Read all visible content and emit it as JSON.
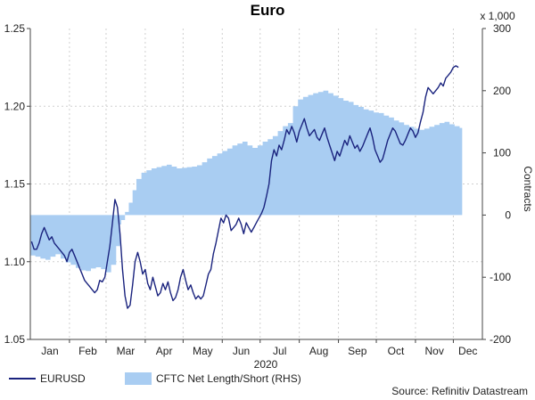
{
  "chart_data": {
    "type": "line",
    "title": "Euro",
    "xlabel": "2020",
    "ylabel_right": "Contracts",
    "right_unit_note": "x 1,000",
    "x_tick_labels": [
      "Jan",
      "Feb",
      "Mar",
      "Apr",
      "May",
      "Jun",
      "Jul",
      "Aug",
      "Sep",
      "Oct",
      "Nov",
      "Dec"
    ],
    "x_range_days": [
      0,
      358
    ],
    "left_axis": {
      "ylim": [
        1.05,
        1.25
      ],
      "ticks": [
        "1.05",
        "1.10",
        "1.15",
        "1.20",
        "1.25"
      ]
    },
    "right_axis": {
      "ylim": [
        -200,
        300
      ],
      "ticks": [
        "-200",
        "-100",
        "0",
        "100",
        "200",
        "300"
      ]
    },
    "grid": true,
    "legend_position": "bottom-left",
    "series": [
      {
        "name": "EURUSD",
        "axis": "left",
        "type": "line",
        "color": "#1a237e",
        "points": [
          [
            1,
            1.113
          ],
          [
            3,
            1.108
          ],
          [
            5,
            1.108
          ],
          [
            7,
            1.112
          ],
          [
            9,
            1.118
          ],
          [
            11,
            1.122
          ],
          [
            13,
            1.118
          ],
          [
            15,
            1.114
          ],
          [
            17,
            1.116
          ],
          [
            19,
            1.112
          ],
          [
            21,
            1.11
          ],
          [
            23,
            1.108
          ],
          [
            25,
            1.106
          ],
          [
            27,
            1.104
          ],
          [
            29,
            1.1
          ],
          [
            31,
            1.106
          ],
          [
            33,
            1.108
          ],
          [
            35,
            1.104
          ],
          [
            37,
            1.1
          ],
          [
            39,
            1.096
          ],
          [
            41,
            1.092
          ],
          [
            43,
            1.088
          ],
          [
            45,
            1.086
          ],
          [
            47,
            1.084
          ],
          [
            49,
            1.082
          ],
          [
            51,
            1.08
          ],
          [
            53,
            1.082
          ],
          [
            55,
            1.088
          ],
          [
            57,
            1.087
          ],
          [
            59,
            1.09
          ],
          [
            61,
            1.1
          ],
          [
            63,
            1.11
          ],
          [
            65,
            1.125
          ],
          [
            67,
            1.14
          ],
          [
            69,
            1.135
          ],
          [
            71,
            1.118
          ],
          [
            73,
            1.095
          ],
          [
            75,
            1.078
          ],
          [
            77,
            1.07
          ],
          [
            79,
            1.072
          ],
          [
            81,
            1.085
          ],
          [
            83,
            1.1
          ],
          [
            85,
            1.106
          ],
          [
            87,
            1.1
          ],
          [
            89,
            1.092
          ],
          [
            91,
            1.095
          ],
          [
            93,
            1.086
          ],
          [
            95,
            1.082
          ],
          [
            97,
            1.09
          ],
          [
            99,
            1.084
          ],
          [
            101,
            1.078
          ],
          [
            103,
            1.08
          ],
          [
            105,
            1.086
          ],
          [
            107,
            1.082
          ],
          [
            109,
            1.087
          ],
          [
            111,
            1.08
          ],
          [
            113,
            1.075
          ],
          [
            115,
            1.077
          ],
          [
            117,
            1.082
          ],
          [
            119,
            1.09
          ],
          [
            121,
            1.095
          ],
          [
            123,
            1.088
          ],
          [
            125,
            1.082
          ],
          [
            127,
            1.085
          ],
          [
            129,
            1.08
          ],
          [
            131,
            1.076
          ],
          [
            133,
            1.078
          ],
          [
            135,
            1.076
          ],
          [
            137,
            1.078
          ],
          [
            139,
            1.085
          ],
          [
            141,
            1.092
          ],
          [
            143,
            1.095
          ],
          [
            145,
            1.105
          ],
          [
            147,
            1.112
          ],
          [
            149,
            1.12
          ],
          [
            151,
            1.128
          ],
          [
            153,
            1.125
          ],
          [
            155,
            1.13
          ],
          [
            157,
            1.128
          ],
          [
            159,
            1.12
          ],
          [
            161,
            1.122
          ],
          [
            163,
            1.124
          ],
          [
            165,
            1.128
          ],
          [
            167,
            1.124
          ],
          [
            169,
            1.118
          ],
          [
            171,
            1.125
          ],
          [
            173,
            1.122
          ],
          [
            175,
            1.119
          ],
          [
            177,
            1.122
          ],
          [
            179,
            1.125
          ],
          [
            181,
            1.128
          ],
          [
            183,
            1.131
          ],
          [
            185,
            1.135
          ],
          [
            187,
            1.142
          ],
          [
            189,
            1.15
          ],
          [
            191,
            1.165
          ],
          [
            193,
            1.172
          ],
          [
            195,
            1.168
          ],
          [
            197,
            1.175
          ],
          [
            199,
            1.172
          ],
          [
            201,
            1.178
          ],
          [
            203,
            1.185
          ],
          [
            205,
            1.182
          ],
          [
            207,
            1.187
          ],
          [
            209,
            1.183
          ],
          [
            211,
            1.177
          ],
          [
            213,
            1.184
          ],
          [
            215,
            1.188
          ],
          [
            217,
            1.192
          ],
          [
            219,
            1.186
          ],
          [
            221,
            1.181
          ],
          [
            223,
            1.183
          ],
          [
            225,
            1.185
          ],
          [
            227,
            1.18
          ],
          [
            229,
            1.178
          ],
          [
            231,
            1.182
          ],
          [
            233,
            1.186
          ],
          [
            235,
            1.18
          ],
          [
            237,
            1.175
          ],
          [
            239,
            1.17
          ],
          [
            241,
            1.165
          ],
          [
            243,
            1.171
          ],
          [
            245,
            1.168
          ],
          [
            247,
            1.173
          ],
          [
            249,
            1.178
          ],
          [
            251,
            1.175
          ],
          [
            253,
            1.181
          ],
          [
            255,
            1.177
          ],
          [
            257,
            1.173
          ],
          [
            259,
            1.175
          ],
          [
            261,
            1.171
          ],
          [
            263,
            1.174
          ],
          [
            265,
            1.178
          ],
          [
            267,
            1.182
          ],
          [
            269,
            1.186
          ],
          [
            271,
            1.18
          ],
          [
            273,
            1.172
          ],
          [
            275,
            1.168
          ],
          [
            277,
            1.164
          ],
          [
            279,
            1.166
          ],
          [
            281,
            1.172
          ],
          [
            283,
            1.178
          ],
          [
            285,
            1.182
          ],
          [
            287,
            1.186
          ],
          [
            289,
            1.184
          ],
          [
            291,
            1.18
          ],
          [
            293,
            1.176
          ],
          [
            295,
            1.175
          ],
          [
            297,
            1.178
          ],
          [
            299,
            1.182
          ],
          [
            301,
            1.186
          ],
          [
            303,
            1.184
          ],
          [
            305,
            1.18
          ],
          [
            307,
            1.183
          ],
          [
            309,
            1.19
          ],
          [
            311,
            1.196
          ],
          [
            313,
            1.206
          ],
          [
            315,
            1.212
          ],
          [
            317,
            1.21
          ],
          [
            319,
            1.208
          ],
          [
            321,
            1.21
          ],
          [
            323,
            1.212
          ],
          [
            325,
            1.215
          ],
          [
            327,
            1.213
          ],
          [
            329,
            1.218
          ],
          [
            331,
            1.22
          ],
          [
            333,
            1.222
          ],
          [
            335,
            1.225
          ],
          [
            337,
            1.226
          ],
          [
            339,
            1.225
          ]
        ]
      },
      {
        "name": "CFTC Net Length/Short (RHS)",
        "axis": "right",
        "type": "area",
        "color": "#a9cdf2",
        "points": [
          [
            0,
            -65
          ],
          [
            4,
            -67
          ],
          [
            8,
            -70
          ],
          [
            12,
            -72
          ],
          [
            16,
            -67
          ],
          [
            20,
            -63
          ],
          [
            24,
            -70
          ],
          [
            28,
            -76
          ],
          [
            32,
            -80
          ],
          [
            36,
            -85
          ],
          [
            40,
            -89
          ],
          [
            44,
            -90
          ],
          [
            48,
            -86
          ],
          [
            52,
            -84
          ],
          [
            56,
            -87
          ],
          [
            60,
            -92
          ],
          [
            64,
            -80
          ],
          [
            68,
            -50
          ],
          [
            71,
            -15
          ],
          [
            72,
            -8
          ],
          [
            75,
            5
          ],
          [
            78,
            20
          ],
          [
            81,
            40
          ],
          [
            84,
            58
          ],
          [
            88,
            68
          ],
          [
            92,
            72
          ],
          [
            96,
            75
          ],
          [
            100,
            77
          ],
          [
            104,
            79
          ],
          [
            108,
            81
          ],
          [
            112,
            78
          ],
          [
            116,
            75
          ],
          [
            120,
            76
          ],
          [
            124,
            77
          ],
          [
            128,
            78
          ],
          [
            132,
            80
          ],
          [
            136,
            85
          ],
          [
            140,
            91
          ],
          [
            144,
            95
          ],
          [
            148,
            99
          ],
          [
            152,
            103
          ],
          [
            156,
            107
          ],
          [
            160,
            112
          ],
          [
            164,
            115
          ],
          [
            168,
            118
          ],
          [
            172,
            112
          ],
          [
            176,
            108
          ],
          [
            180,
            112
          ],
          [
            184,
            118
          ],
          [
            188,
            122
          ],
          [
            192,
            127
          ],
          [
            196,
            135
          ],
          [
            200,
            143
          ],
          [
            204,
            148
          ],
          [
            208,
            175
          ],
          [
            212,
            186
          ],
          [
            216,
            190
          ],
          [
            220,
            193
          ],
          [
            224,
            196
          ],
          [
            228,
            198
          ],
          [
            232,
            200
          ],
          [
            236,
            196
          ],
          [
            240,
            192
          ],
          [
            244,
            188
          ],
          [
            248,
            184
          ],
          [
            252,
            182
          ],
          [
            256,
            177
          ],
          [
            260,
            174
          ],
          [
            264,
            170
          ],
          [
            268,
            168
          ],
          [
            272,
            165
          ],
          [
            276,
            164
          ],
          [
            280,
            160
          ],
          [
            284,
            157
          ],
          [
            288,
            152
          ],
          [
            292,
            149
          ],
          [
            296,
            145
          ],
          [
            300,
            142
          ],
          [
            304,
            139
          ],
          [
            308,
            137
          ],
          [
            312,
            139
          ],
          [
            316,
            142
          ],
          [
            320,
            145
          ],
          [
            324,
            148
          ],
          [
            328,
            150
          ],
          [
            332,
            146
          ],
          [
            336,
            143
          ],
          [
            340,
            140
          ]
        ]
      }
    ],
    "source": "Source: Refinitiv Datastream"
  }
}
